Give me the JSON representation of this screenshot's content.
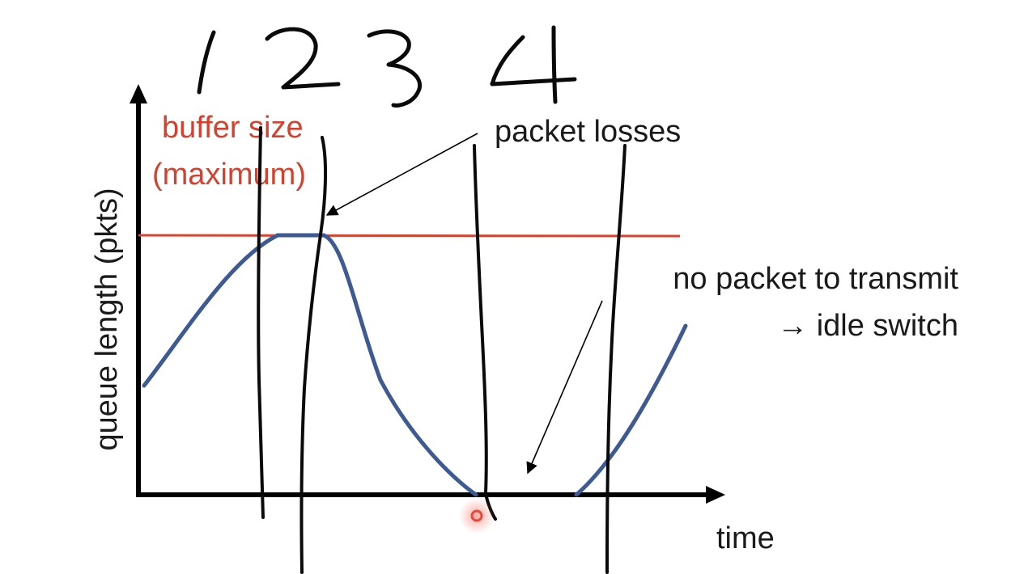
{
  "diagram": {
    "y_axis_label": "queue length (pkts)",
    "x_axis_label": "time",
    "buffer_label_line1": "buffer size",
    "buffer_label_line2": "(maximum)",
    "loss_annotation": "packet losses",
    "idle_annotation_line1": "no packet to transmit",
    "idle_annotation_line2": "→ idle switch",
    "handwritten_region_numbers": [
      "1",
      "2",
      "3",
      "4"
    ]
  },
  "colors": {
    "axis": "#000000",
    "buffer_line": "#d9432f",
    "queue_curve": "#3d5a93",
    "label_red": "#d4412e",
    "ink": "#0a0a0a",
    "cursor_dot": "#e8473a"
  }
}
